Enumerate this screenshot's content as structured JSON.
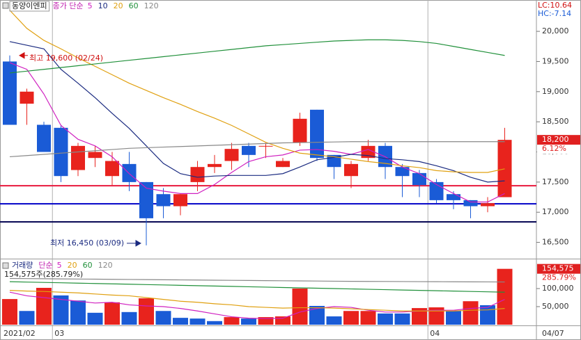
{
  "chart_data": [
    {
      "type": "candlestick",
      "title": "동양이엔피",
      "legend_title": "종가 단순",
      "lc": "LC:10.64",
      "hc": "HC:-7.14",
      "open": [
        19500,
        18800,
        18450,
        18400,
        17700,
        17900,
        17600,
        17800,
        17500,
        17300,
        17100,
        17500,
        17750,
        17850,
        18100,
        18100,
        17750,
        18150,
        18700,
        17950,
        17600,
        17900,
        18100,
        17750,
        17650,
        17500,
        17300,
        17200,
        17100,
        17250
      ],
      "high": [
        19600,
        19050,
        18500,
        18450,
        18150,
        18100,
        18000,
        18000,
        17500,
        17400,
        17300,
        17850,
        17950,
        18150,
        18150,
        18150,
        17900,
        18650,
        18700,
        17950,
        17850,
        18200,
        18150,
        17800,
        17700,
        17550,
        17350,
        17200,
        17250,
        18400
      ],
      "low": [
        18450,
        18450,
        18000,
        17500,
        17600,
        17750,
        17450,
        17350,
        16450,
        16900,
        16950,
        17350,
        17650,
        17700,
        17750,
        17900,
        17750,
        18100,
        17850,
        17550,
        17400,
        17850,
        17550,
        17250,
        17250,
        17150,
        17050,
        16900,
        17000,
        17250
      ],
      "close": [
        18450,
        19000,
        18000,
        17600,
        18100,
        18000,
        17850,
        17500,
        16900,
        17100,
        17300,
        17750,
        17800,
        18050,
        17950,
        18100,
        17850,
        18550,
        17900,
        17750,
        17800,
        18100,
        17750,
        17600,
        17450,
        17200,
        17200,
        17100,
        17150,
        18200
      ],
      "up_color": "#e8231d",
      "down_color": "#1a5bd6",
      "series": [
        {
          "name": "5",
          "color": "#d020c0",
          "values": [
            19480,
            19370,
            18960,
            18440,
            18210,
            18100,
            17920,
            17640,
            17400,
            17350,
            17310,
            17310,
            17460,
            17660,
            17840,
            17920,
            17950,
            18030,
            18040,
            18010,
            17960,
            18040,
            17920,
            17750,
            17640,
            17460,
            17310,
            17170,
            17170,
            17310
          ]
        },
        {
          "name": "10",
          "color": "#1a2a80",
          "values": [
            19830,
            19770,
            19710,
            19370,
            19140,
            18900,
            18640,
            18390,
            18100,
            17810,
            17640,
            17580,
            17600,
            17610,
            17610,
            17610,
            17640,
            17750,
            17870,
            17910,
            17960,
            17940,
            17890,
            17870,
            17840,
            17770,
            17690,
            17580,
            17500,
            17520
          ]
        },
        {
          "name": "20",
          "color": "#e0a010",
          "values": [
            20350,
            20050,
            19850,
            19710,
            19560,
            19420,
            19280,
            19140,
            19020,
            18900,
            18790,
            18670,
            18560,
            18440,
            18300,
            18160,
            18060,
            17980,
            17950,
            17920,
            17880,
            17840,
            17810,
            17770,
            17740,
            17690,
            17670,
            17660,
            17660,
            17720
          ]
        },
        {
          "name": "60",
          "color": "#20903a",
          "values": [
            19310,
            19340,
            19370,
            19400,
            19430,
            19460,
            19490,
            19520,
            19550,
            19580,
            19610,
            19640,
            19670,
            19700,
            19730,
            19760,
            19780,
            19800,
            19820,
            19840,
            19850,
            19860,
            19860,
            19850,
            19830,
            19800,
            19750,
            19700,
            19650,
            19600
          ]
        },
        {
          "name": "120",
          "color": "#888888",
          "values": [
            17920,
            17940,
            17960,
            17980,
            18000,
            18020,
            18040,
            18060,
            18070,
            18080,
            18090,
            18100,
            18110,
            18120,
            18130,
            18140,
            18150,
            18155,
            18160,
            18165,
            18170,
            18170,
            18170,
            18170,
            18170,
            18170,
            18170,
            18170,
            18170,
            18170
          ]
        }
      ],
      "hlines": [
        {
          "value": 17440,
          "color": "#e8183c"
        },
        {
          "value": 17140,
          "color": "#0000c8"
        },
        {
          "value": 16840,
          "color": "#000050"
        }
      ],
      "annotations": [
        {
          "index": 0,
          "value": 19600,
          "label": "최고 19,600 (02/24)",
          "color": "#d01010"
        },
        {
          "index": 8,
          "value": 16450,
          "label": "최저 16,450 (03/09)",
          "color": "#1a2a80"
        }
      ],
      "last_price": {
        "value": 18200,
        "label": "18,200"
      },
      "change": "6.12%",
      "ylim": [
        16230,
        20520
      ],
      "yticks": [
        {
          "value": 16500,
          "label": "16,500"
        },
        {
          "value": 17000,
          "label": "17,000"
        },
        {
          "value": 17500,
          "label": "17,500"
        },
        {
          "value": 18000,
          "label": "18,000"
        },
        {
          "value": 18500,
          "label": "18,500"
        },
        {
          "value": 19000,
          "label": "19,000"
        },
        {
          "value": 19500,
          "label": "19,500"
        },
        {
          "value": 20000,
          "label": "20,000"
        }
      ]
    },
    {
      "type": "bar",
      "title": "거래량",
      "legend_title": "단순",
      "subtitle": "154,575주(285.79%)",
      "categories": [
        "2021/02",
        null,
        null,
        "03",
        null,
        null,
        null,
        null,
        null,
        null,
        null,
        null,
        null,
        null,
        null,
        null,
        null,
        null,
        null,
        null,
        null,
        null,
        null,
        null,
        null,
        "04",
        null,
        null,
        null,
        null
      ],
      "date": "04/07",
      "values": [
        71000,
        38000,
        102000,
        81000,
        67000,
        33000,
        62000,
        35000,
        73000,
        38000,
        19000,
        17000,
        10000,
        21000,
        17000,
        21000,
        23000,
        100000,
        52000,
        23000,
        38000,
        38000,
        31000,
        31000,
        46000,
        48000,
        38000,
        65000,
        54000,
        154575
      ],
      "colors": [
        "#e8231d",
        "#1a5bd6",
        "#e8231d",
        "#1a5bd6",
        "#1a5bd6",
        "#1a5bd6",
        "#e8231d",
        "#1a5bd6",
        "#e8231d",
        "#1a5bd6",
        "#1a5bd6",
        "#1a5bd6",
        "#1a5bd6",
        "#e8231d",
        "#1a5bd6",
        "#e8231d",
        "#e8231d",
        "#e8231d",
        "#1a5bd6",
        "#1a5bd6",
        "#e8231d",
        "#e8231d",
        "#1a5bd6",
        "#1a5bd6",
        "#e8231d",
        "#e8231d",
        "#1a5bd6",
        "#e8231d",
        "#1a5bd6",
        "#e8231d"
      ],
      "series": [
        {
          "name": "5",
          "color": "#d020c0",
          "values": [
            90000,
            80000,
            75000,
            70000,
            65000,
            60000,
            62000,
            55000,
            52000,
            50000,
            45000,
            38000,
            30000,
            22000,
            18000,
            17000,
            18000,
            35000,
            45000,
            50000,
            48000,
            40000,
            35000,
            35000,
            38000,
            40000,
            40000,
            45000,
            48000,
            70000
          ]
        },
        {
          "name": "20",
          "color": "#e0a010",
          "values": [
            95000,
            93000,
            92000,
            90000,
            88000,
            85000,
            82000,
            80000,
            75000,
            70000,
            65000,
            62000,
            58000,
            55000,
            50000,
            48000,
            46000,
            47000,
            47000,
            46000,
            44000,
            42000,
            40000,
            38000,
            38000,
            38000,
            38000,
            40000,
            41000,
            45000
          ]
        },
        {
          "name": "60",
          "color": "#20903a",
          "values": [
            119000,
            118000,
            117000,
            116000,
            115000,
            114000,
            113000,
            112000,
            111000,
            110000,
            109000,
            108000,
            107000,
            106000,
            105000,
            104000,
            103000,
            102000,
            101000,
            100000,
            99000,
            98000,
            97000,
            96000,
            95000,
            94000,
            93000,
            92000,
            91000,
            90000
          ]
        },
        {
          "name": "120",
          "color": "#888888",
          "values": [
            128000,
            127600,
            127200,
            126800,
            126400,
            126000,
            125600,
            125200,
            124800,
            124400,
            124000,
            123600,
            123200,
            122800,
            122400,
            122000,
            121600,
            121200,
            120800,
            120400,
            120000,
            119800,
            119600,
            119400,
            119200,
            119000,
            118800,
            118600,
            118400,
            118200
          ]
        }
      ],
      "last_value": {
        "value": 154575,
        "label": "154,575"
      },
      "change": "285.79%",
      "ylim": [
        0,
        177000
      ],
      "yticks": [
        {
          "value": 50000,
          "label": "50,000"
        },
        {
          "value": 100000,
          "label": "100,000"
        }
      ]
    }
  ]
}
